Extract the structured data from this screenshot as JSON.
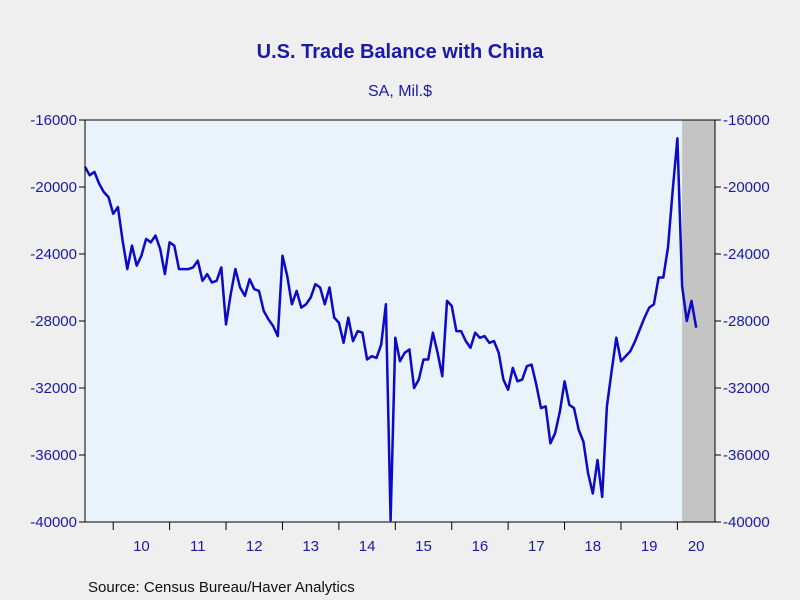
{
  "chart_data": {
    "type": "line",
    "title": "U.S. Trade Balance with China",
    "subtitle": "SA, Mil.$",
    "source": "Source:  Census Bureau/Haver Analytics",
    "ylim": [
      -40000,
      -16000
    ],
    "yticks": [
      -16000,
      -20000,
      -24000,
      -28000,
      -32000,
      -36000,
      -40000
    ],
    "ytick_labels": [
      "-16000",
      "-20000",
      "-24000",
      "-28000",
      "-32000",
      "-36000",
      "-40000"
    ],
    "xticks": [
      "10",
      "11",
      "12",
      "13",
      "14",
      "15",
      "16",
      "17",
      "18",
      "19",
      "20"
    ],
    "x_start": "2009-07",
    "shaded_region": {
      "from": "2020-02",
      "to": "2020-08"
    },
    "colors": {
      "line": "#0a0ac8",
      "axis_text": "#1a1aa8",
      "plot_bg": "#eaf2fb",
      "shade": "#c4c4c4",
      "page_bg": "#efefef"
    },
    "series": [
      {
        "values": [
          -18800,
          -19300,
          -19100,
          -19800,
          -20300,
          -20600,
          -21600,
          -21200,
          -23200,
          -24900,
          -23500,
          -24700,
          -24100,
          -23100,
          -23300,
          -22900,
          -23700,
          -25200,
          -23300,
          -23500,
          -24900,
          -24900,
          -24900,
          -24800,
          -24400,
          -25600,
          -25200,
          -25700,
          -25600,
          -24800,
          -28200,
          -26400,
          -24900,
          -26000,
          -26500,
          -25500,
          -26100,
          -26200,
          -27400,
          -27900,
          -28300,
          -28900,
          -24100,
          -25300,
          -27000,
          -26200,
          -27200,
          -27000,
          -26600,
          -25800,
          -26000,
          -27000,
          -26000,
          -27800,
          -28100,
          -29300,
          -27800,
          -29200,
          -28600,
          -28700,
          -30300,
          -30100,
          -30200,
          -29400,
          -27000,
          -39900,
          -29000,
          -30400,
          -29900,
          -29700,
          -32000,
          -31500,
          -30300,
          -30300,
          -28700,
          -29900,
          -31300,
          -26800,
          -27100,
          -28600,
          -28600,
          -29200,
          -29600,
          -28700,
          -29000,
          -28900,
          -29300,
          -29200,
          -29900,
          -31500,
          -32100,
          -30800,
          -31600,
          -31500,
          -30700,
          -30600,
          -31800,
          -33200,
          -33100,
          -35300,
          -34700,
          -33400,
          -31600,
          -33000,
          -33200,
          -34500,
          -35200,
          -37100,
          -38300,
          -36300,
          -38500,
          -33100,
          -31000,
          -29000,
          -30400,
          -30100,
          -29800,
          -29200,
          -28500,
          -27800,
          -27200,
          -27000,
          -25400,
          -25400,
          -23600,
          -20200,
          -17100,
          -25900,
          -28000,
          -26800,
          -28400
        ]
      }
    ]
  }
}
